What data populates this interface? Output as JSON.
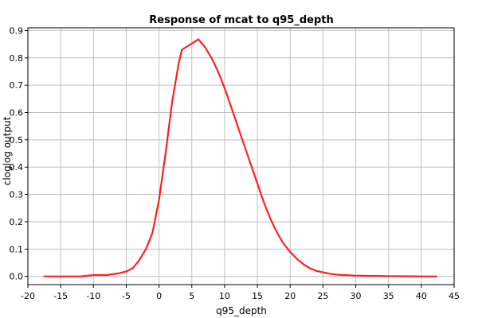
{
  "chart_data": {
    "type": "line",
    "title": "Response of mcat to q95_depth",
    "xlabel": "q95_depth",
    "ylabel": "cloglog output",
    "xlim": [
      -20,
      45
    ],
    "ylim": [
      -0.03,
      0.91
    ],
    "x_ticks": [
      "-20",
      "-15",
      "-10",
      "-5",
      "0",
      "5",
      "10",
      "15",
      "20",
      "25",
      "30",
      "35",
      "40",
      "45"
    ],
    "y_ticks": [
      "0.0",
      "0.1",
      "0.2",
      "0.3",
      "0.4",
      "0.5",
      "0.6",
      "0.7",
      "0.8",
      "0.9"
    ],
    "grid": true,
    "legend": "none",
    "line_color": "#ff2020",
    "series": [
      {
        "x": [
          -17.5,
          -15,
          -12,
          -10,
          -8,
          -6,
          -5,
          -4,
          -3,
          -2,
          -1,
          0,
          1,
          2,
          3,
          3.5,
          4.5,
          5.5,
          6,
          7,
          8,
          9,
          10,
          11,
          12,
          13,
          14,
          15,
          16,
          17,
          18,
          19,
          20,
          21,
          22,
          23,
          24,
          25,
          26,
          27,
          28,
          29,
          30,
          32,
          35,
          40,
          42.3
        ],
        "y": [
          0.0,
          0.0,
          0.0,
          0.005,
          0.005,
          0.012,
          0.018,
          0.03,
          0.06,
          0.1,
          0.16,
          0.28,
          0.45,
          0.64,
          0.78,
          0.83,
          0.845,
          0.86,
          0.868,
          0.84,
          0.8,
          0.75,
          0.69,
          0.62,
          0.55,
          0.48,
          0.41,
          0.34,
          0.27,
          0.21,
          0.16,
          0.12,
          0.09,
          0.065,
          0.045,
          0.03,
          0.02,
          0.015,
          0.01,
          0.007,
          0.005,
          0.004,
          0.003,
          0.002,
          0.001,
          0.0,
          0.0
        ]
      }
    ]
  }
}
